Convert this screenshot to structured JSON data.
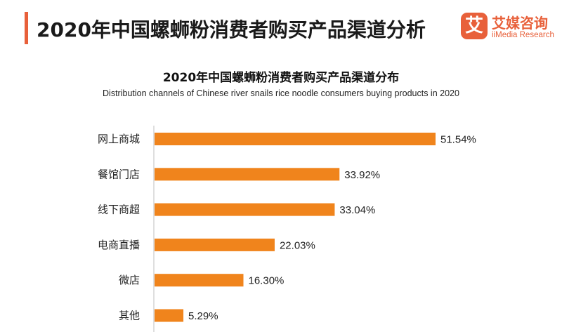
{
  "header": {
    "title": "2020年中国螺蛳粉消费者购买产品渠道分析",
    "brand_name": "艾媒咨询",
    "brand_sub": "iiMedia Research",
    "brand_logo_char": "艾"
  },
  "colors": {
    "accent": "#e8603a",
    "bar": "#f0841c"
  },
  "chart_data": {
    "type": "bar",
    "orientation": "horizontal",
    "title": "2020年中国螺蛳粉消费者购买产品渠道分布",
    "subtitle": "Distribution channels of Chinese river snails rice noodle consumers buying products in 2020",
    "categories": [
      "网上商城",
      "餐馆门店",
      "线下商超",
      "电商直播",
      "微店",
      "其他"
    ],
    "values": [
      51.54,
      33.92,
      33.04,
      22.03,
      16.3,
      5.29
    ],
    "value_labels": [
      "51.54%",
      "33.92%",
      "33.04%",
      "22.03%",
      "16.30%",
      "5.29%"
    ],
    "unit": "%",
    "xlim": [
      0,
      51.54
    ],
    "grid": false,
    "legend": "none"
  }
}
